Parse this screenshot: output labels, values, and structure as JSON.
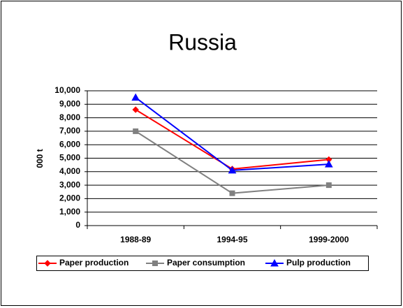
{
  "chart_data": {
    "type": "line",
    "title": "Russia",
    "y_label": "000 t",
    "categories": [
      "1988-89",
      "1994-95",
      "1999-2000"
    ],
    "series": [
      {
        "name": "Paper production",
        "color": "#ff0000",
        "marker": "diamond",
        "values": [
          8600,
          4200,
          4900
        ]
      },
      {
        "name": "Paper consumption",
        "color": "#808080",
        "marker": "square",
        "values": [
          7000,
          2400,
          3000
        ]
      },
      {
        "name": "Pulp production",
        "color": "#0000ff",
        "marker": "triangle",
        "values": [
          9500,
          4100,
          4550
        ]
      }
    ],
    "ylim": [
      0,
      10000
    ],
    "yticks": [
      0,
      {
        "value": 1000,
        "label": "1,000"
      },
      {
        "value": 2000,
        "label": "2,000"
      },
      {
        "value": 3000,
        "label": "3,000"
      },
      {
        "value": 4000,
        "label": "4,000"
      },
      {
        "value": 5000,
        "label": "5,000"
      },
      {
        "value": 6000,
        "label": "6,000"
      },
      {
        "value": 7000,
        "label": "7,000"
      },
      {
        "value": 8000,
        "label": "8,000"
      },
      {
        "value": 9000,
        "label": "9,000"
      },
      {
        "value": 10000,
        "label": "10,000"
      }
    ],
    "grid": true,
    "legend": "bottom"
  }
}
